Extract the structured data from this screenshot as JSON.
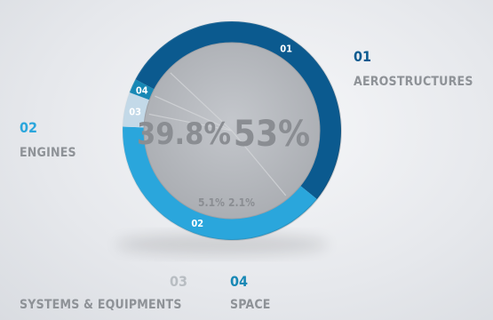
{
  "chart_data": {
    "type": "pie",
    "style": "donut",
    "segments": [
      {
        "id": "01",
        "name": "AEROSTRUCTURES",
        "value": 53,
        "label": "53%",
        "color": "#0b5a8f"
      },
      {
        "id": "02",
        "name": "ENGINES",
        "value": 39.8,
        "label": "39.8%",
        "color": "#2aa6dc"
      },
      {
        "id": "03",
        "name": "SYSTEMS & EQUIPMENTS",
        "value": 5.1,
        "label": "5.1%",
        "color": "#c3d9e8"
      },
      {
        "id": "04",
        "name": "SPACE",
        "value": 2.1,
        "label": "2.1%",
        "color": "#1788b5"
      }
    ]
  },
  "legend": {
    "aerostructures": {
      "num": "01",
      "name": "AEROSTRUCTURES"
    },
    "engines": {
      "num": "02",
      "name": "ENGINES"
    },
    "systems": {
      "num": "03",
      "name": "SYSTEMS & EQUIPMENTS"
    },
    "space": {
      "num": "04",
      "name": "SPACE"
    }
  },
  "colors": {
    "aerostructures": "#0b5a8f",
    "engines": "#2aa6dc",
    "systems": "#c3d9e8",
    "space": "#1788b5",
    "legend_name": "#8e9297",
    "value_text": "#8a8d92"
  }
}
